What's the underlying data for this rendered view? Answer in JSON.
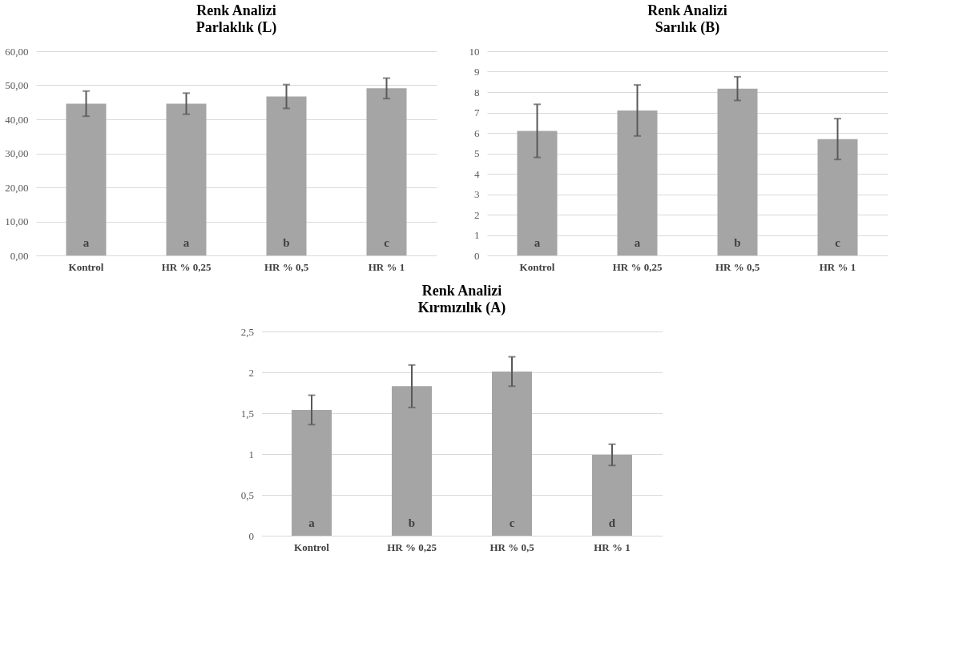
{
  "chart_data": [
    {
      "type": "bar",
      "title": "Renk Analizi",
      "subtitle": "Parlaklık (L)",
      "categories": [
        "Kontrol",
        "HR % 0,25",
        "HR % 0,5",
        "HR % 1"
      ],
      "series": [
        {
          "color": "#a5a5a5",
          "values": [
            44.6,
            44.6,
            46.7,
            49.1
          ],
          "errors": [
            3.7,
            3.1,
            3.5,
            3.0
          ]
        }
      ],
      "ylim": [
        0,
        60
      ],
      "yticks": [
        {
          "value": 0,
          "label": "0,00"
        },
        {
          "value": 10,
          "label": "10,00"
        },
        {
          "value": 20,
          "label": "20,00"
        },
        {
          "value": 30,
          "label": "30,00"
        },
        {
          "value": 40,
          "label": "40,00"
        },
        {
          "value": 50,
          "label": "50,00"
        },
        {
          "value": 60,
          "label": "60,00"
        }
      ],
      "grid": "y",
      "annotations": [
        "a",
        "a",
        "b",
        "c"
      ]
    },
    {
      "type": "bar",
      "title": "Renk Analizi",
      "subtitle": "Sarılık (B)",
      "categories": [
        "Kontrol",
        "HR % 0,25",
        "HR % 0,5",
        "HR % 1"
      ],
      "series": [
        {
          "color": "#a5a5a5",
          "values": [
            6.1,
            7.1,
            8.17,
            5.7
          ],
          "errors": [
            1.3,
            1.25,
            0.58,
            1.0
          ]
        }
      ],
      "ylim": [
        0,
        10
      ],
      "yticks": [
        0,
        1,
        2,
        3,
        4,
        5,
        6,
        7,
        8,
        9,
        10
      ],
      "grid": "y",
      "annotations": [
        "a",
        "a",
        "b",
        "c"
      ]
    },
    {
      "type": "bar",
      "title": "Renk Analizi",
      "subtitle": "Kırmızılık (A)",
      "categories": [
        "Kontrol",
        "HR % 0,25",
        "HR % 0,5",
        "HR % 1"
      ],
      "series": [
        {
          "color": "#a5a5a5",
          "values": [
            1.54,
            1.83,
            2.01,
            0.99
          ],
          "errors": [
            0.18,
            0.26,
            0.18,
            0.13
          ]
        }
      ],
      "ylim": [
        0,
        2.5
      ],
      "yticks": [
        0,
        {
          "value": 0.5,
          "label": "0,5"
        },
        1,
        {
          "value": 1.5,
          "label": "1,5"
        },
        2,
        {
          "value": 2.5,
          "label": "2,5"
        }
      ],
      "grid": "y",
      "annotations": [
        "a",
        "b",
        "c",
        "d"
      ]
    }
  ]
}
